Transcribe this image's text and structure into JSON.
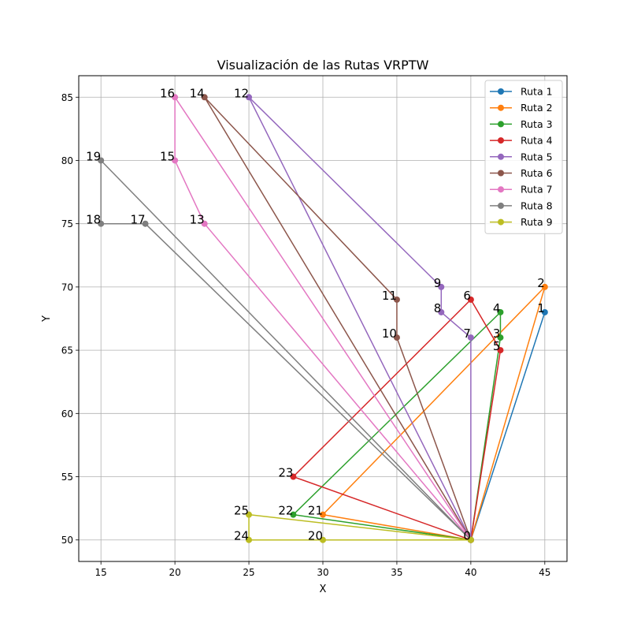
{
  "chart_data": {
    "type": "line",
    "title": "Visualización de las Rutas VRPTW",
    "xlabel": "X",
    "ylabel": "Y",
    "xlim": [
      13.5,
      46.5
    ],
    "ylim": [
      48.3,
      86.7
    ],
    "xticks": [
      15,
      20,
      25,
      30,
      35,
      40,
      45
    ],
    "yticks": [
      50,
      55,
      60,
      65,
      70,
      75,
      80,
      85
    ],
    "grid": true,
    "legend_position": "top-right",
    "nodes": [
      {
        "id": "0",
        "x": 40,
        "y": 50
      },
      {
        "id": "1",
        "x": 45,
        "y": 68
      },
      {
        "id": "2",
        "x": 45,
        "y": 70
      },
      {
        "id": "3",
        "x": 42,
        "y": 66
      },
      {
        "id": "4",
        "x": 42,
        "y": 68
      },
      {
        "id": "5",
        "x": 42,
        "y": 65
      },
      {
        "id": "6",
        "x": 40,
        "y": 69
      },
      {
        "id": "7",
        "x": 40,
        "y": 66
      },
      {
        "id": "8",
        "x": 38,
        "y": 68
      },
      {
        "id": "9",
        "x": 38,
        "y": 70
      },
      {
        "id": "10",
        "x": 35,
        "y": 66
      },
      {
        "id": "11",
        "x": 35,
        "y": 69
      },
      {
        "id": "12",
        "x": 25,
        "y": 85
      },
      {
        "id": "13",
        "x": 22,
        "y": 75
      },
      {
        "id": "14",
        "x": 22,
        "y": 85
      },
      {
        "id": "15",
        "x": 20,
        "y": 80
      },
      {
        "id": "16",
        "x": 20,
        "y": 85
      },
      {
        "id": "17",
        "x": 18,
        "y": 75
      },
      {
        "id": "18",
        "x": 15,
        "y": 75
      },
      {
        "id": "19",
        "x": 15,
        "y": 80
      },
      {
        "id": "20",
        "x": 30,
        "y": 50
      },
      {
        "id": "21",
        "x": 30,
        "y": 52
      },
      {
        "id": "22",
        "x": 28,
        "y": 52
      },
      {
        "id": "23",
        "x": 28,
        "y": 55
      },
      {
        "id": "24",
        "x": 25,
        "y": 50
      },
      {
        "id": "25",
        "x": 25,
        "y": 52
      }
    ],
    "series": [
      {
        "name": "Ruta 1",
        "color": "#1f77b4",
        "route": [
          "0",
          "1",
          "0"
        ]
      },
      {
        "name": "Ruta 2",
        "color": "#ff7f0e",
        "route": [
          "0",
          "2",
          "21",
          "0"
        ]
      },
      {
        "name": "Ruta 3",
        "color": "#2ca02c",
        "route": [
          "0",
          "3",
          "4",
          "22",
          "0"
        ]
      },
      {
        "name": "Ruta 4",
        "color": "#d62728",
        "route": [
          "0",
          "5",
          "6",
          "23",
          "0"
        ]
      },
      {
        "name": "Ruta 5",
        "color": "#9467bd",
        "route": [
          "0",
          "7",
          "8",
          "9",
          "12",
          "0"
        ]
      },
      {
        "name": "Ruta 6",
        "color": "#8c564b",
        "route": [
          "0",
          "10",
          "11",
          "14",
          "0"
        ]
      },
      {
        "name": "Ruta 7",
        "color": "#e377c2",
        "route": [
          "0",
          "13",
          "15",
          "16",
          "0"
        ]
      },
      {
        "name": "Ruta 8",
        "color": "#7f7f7f",
        "route": [
          "0",
          "17",
          "18",
          "19",
          "0"
        ]
      },
      {
        "name": "Ruta 9",
        "color": "#bcbd22",
        "route": [
          "0",
          "20",
          "24",
          "25",
          "0"
        ]
      }
    ]
  }
}
